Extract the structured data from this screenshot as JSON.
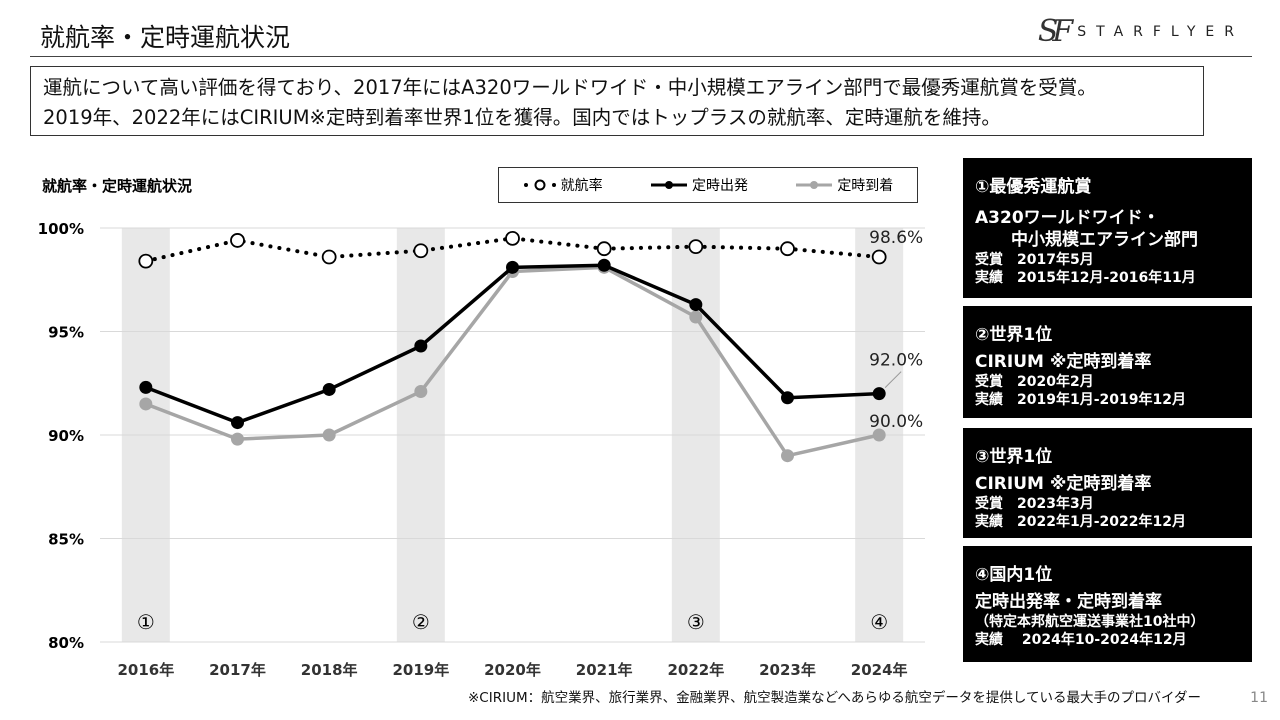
{
  "header": {
    "title": "就航率・定時運航状況",
    "brand": "STARFLYER",
    "brand_mark": "SF"
  },
  "summary": {
    "line1": "運航について高い評価を得ており、2017年にはA320ワールドワイド・中小規模エアライン部門で最優秀運航賞を受賞。",
    "line2": "2019年、2022年にはCIRIUM※定時到着率世界1位を獲得。国内ではトップラスの就航率、定時運航を維持。"
  },
  "chart_data": {
    "type": "line",
    "title": "就航率・定時運航状況",
    "categories": [
      "2016年",
      "2017年",
      "2018年",
      "2019年",
      "2020年",
      "2021年",
      "2022年",
      "2023年",
      "2024年"
    ],
    "ylim": [
      80,
      100
    ],
    "yticks": [
      "80%",
      "85%",
      "90%",
      "95%",
      "100%"
    ],
    "series": [
      {
        "name": "就航率",
        "style": "dotted-open",
        "color": "#000000",
        "values": [
          98.4,
          99.4,
          98.6,
          98.9,
          99.5,
          99.0,
          99.1,
          99.0,
          98.6
        ]
      },
      {
        "name": "定時出発",
        "style": "solid",
        "color": "#000000",
        "values": [
          92.3,
          90.6,
          92.2,
          94.3,
          98.1,
          98.2,
          96.3,
          91.8,
          92.0
        ]
      },
      {
        "name": "定時到着",
        "style": "solid",
        "color": "#a6a6a6",
        "values": [
          91.5,
          89.8,
          90.0,
          92.1,
          97.9,
          98.1,
          95.7,
          89.0,
          90.0
        ]
      }
    ],
    "highlight_bands": [
      {
        "category": "2016年",
        "marker": "①"
      },
      {
        "category": "2019年",
        "marker": "②"
      },
      {
        "category": "2022年",
        "marker": "③"
      },
      {
        "category": "2024年",
        "marker": "④"
      }
    ],
    "annotations": [
      {
        "category": "2024年",
        "value": 98.6,
        "text": "98.6%"
      },
      {
        "category": "2024年",
        "value": 92.0,
        "text": "92.0%"
      },
      {
        "category": "2024年",
        "value": 90.0,
        "text": "90.0%"
      }
    ],
    "legend_position": "top-right",
    "band_color": "#e8e8e8",
    "grid": true
  },
  "awards": [
    {
      "heading": "①最優秀運航賞",
      "lines_large": [
        "A320ワールドワイド・",
        "中小規模エアライン部門"
      ],
      "lines": [
        "受賞　2017年5月",
        "実績　2015年12月-2016年11月"
      ]
    },
    {
      "heading": "②世界1位",
      "lines_large": [
        "CIRIUM ※定時到着率"
      ],
      "lines": [
        "受賞　2020年2月",
        "実績　2019年1月-2019年12月"
      ]
    },
    {
      "heading": "③世界1位",
      "lines_large": [
        "CIRIUM ※定時到着率"
      ],
      "lines": [
        "受賞　2023年3月",
        "実績　2022年1月-2022年12月"
      ]
    },
    {
      "heading": "④国内1位",
      "lines_large": [
        "定時出発率・定時到着率"
      ],
      "lines": [
        "（特定本邦航空運送事業社10社中）",
        "実績　 2024年10-2024年12月"
      ]
    }
  ],
  "footnote": "※CIRIUM：航空業界、旅行業界、金融業界、航空製造業などへあらゆる航空データを提供している最大手のプロバイダー",
  "page_number": "11"
}
